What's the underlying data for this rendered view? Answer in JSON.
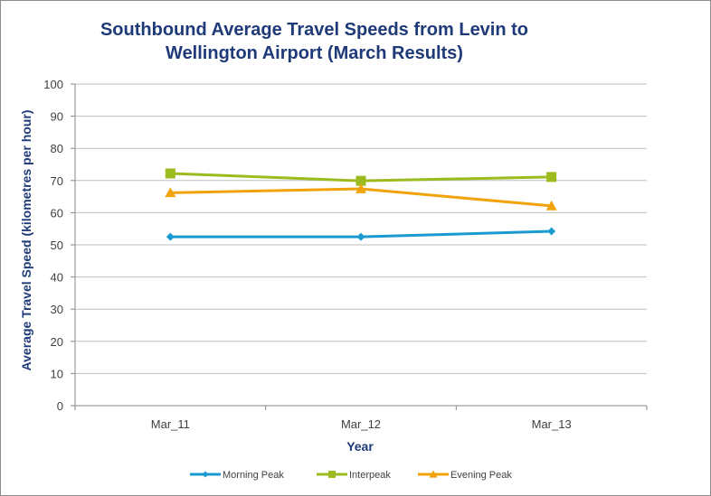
{
  "chart_data": {
    "type": "line",
    "title_line1": "Southbound Average Travel Speeds from Levin to",
    "title_line2": "Wellington Airport (March Results)",
    "xlabel": "Year",
    "ylabel": "Average Travel Speed (kilometres per hour)",
    "categories": [
      "Mar_11",
      "Mar_12",
      "Mar_13"
    ],
    "ylim": [
      0,
      100
    ],
    "yticks": [
      0,
      10,
      20,
      30,
      40,
      50,
      60,
      70,
      80,
      90,
      100
    ],
    "grid": true,
    "legend_position": "bottom",
    "series": [
      {
        "name": "Morning Peak",
        "values": [
          52.5,
          52.5,
          54.2
        ],
        "color": "#1b9ad1",
        "marker": "diamond"
      },
      {
        "name": "Interpeak",
        "values": [
          72.2,
          69.9,
          71.1
        ],
        "color": "#9bbb1f",
        "marker": "square"
      },
      {
        "name": "Evening Peak",
        "values": [
          66.2,
          67.4,
          62.1
        ],
        "color": "#f0a30a",
        "marker": "triangle"
      }
    ]
  }
}
